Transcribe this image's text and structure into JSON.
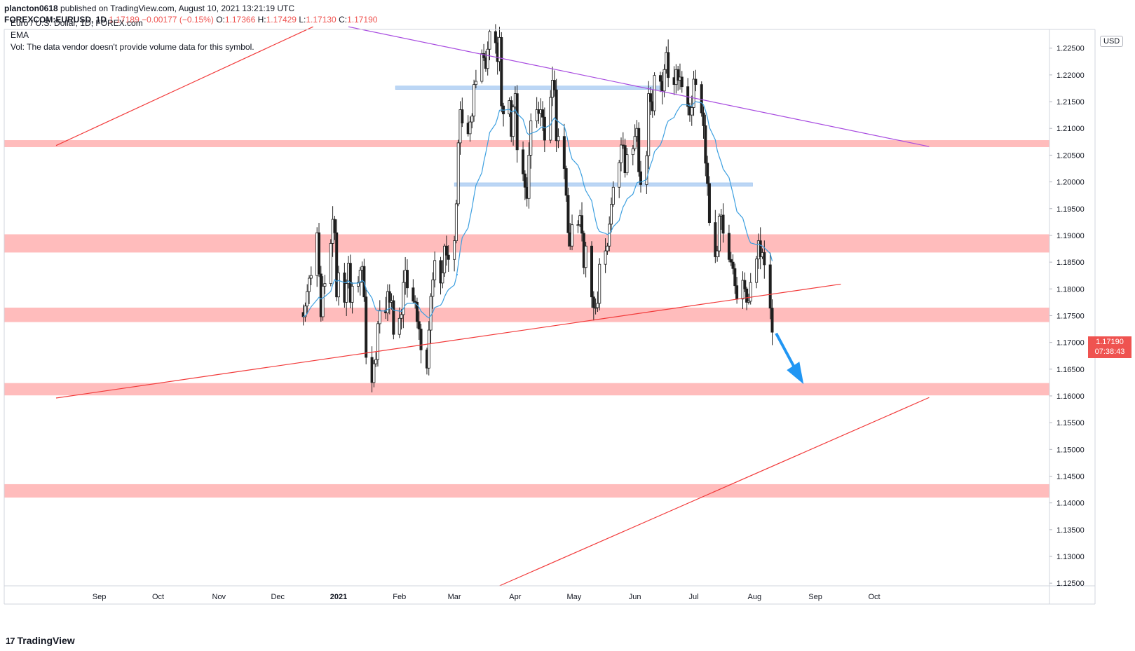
{
  "header": {
    "user": "plancton0618",
    "published": "published on TradingView.com, August 10, 2021 13:21:19 UTC",
    "symbol": "FOREXCOM:EURUSD, 1D",
    "last": "1.17189",
    "change": "−0.00177 (−0.15%)",
    "o_label": "O:",
    "o_value": "1.17366",
    "h_label": "H:",
    "h_value": "1.17429",
    "l_label": "L:",
    "l_value": "1.17130",
    "c_label": "C:",
    "c_value": "1.17190"
  },
  "legend": {
    "name": "Euro / U.S. Dollar, 1D, FOREX.com",
    "ema": "EMA",
    "vol": "Vol: The data vendor doesn't provide volume data for this symbol."
  },
  "axis_badge": "USD",
  "price_tag": {
    "price": "1.17190",
    "countdown": "07:38:43"
  },
  "footer": {
    "brand": "TradingView",
    "logo_glyph": "17"
  },
  "colors": {
    "up": "#26a69a",
    "down": "#ef5350",
    "candle": "#1e1e1e",
    "zone_red": "#ffbcbc",
    "zone_blue": "#bbd6f5",
    "ema": "#3ea0e0",
    "trend_red": "#f23a3a",
    "trend_purple": "#a84ce0",
    "arrow": "#2196f3"
  },
  "chart_data": {
    "type": "candlestick",
    "title": "Euro / U.S. Dollar, 1D, FOREX.com",
    "ylim": [
      1.1245,
      1.2285
    ],
    "y_ticks": [
      "1.22500",
      "1.22000",
      "1.21500",
      "1.21000",
      "1.20500",
      "1.20000",
      "1.19500",
      "1.19000",
      "1.18500",
      "1.18000",
      "1.17500",
      "1.17000",
      "1.16500",
      "1.16000",
      "1.15500",
      "1.15000",
      "1.14500",
      "1.14000",
      "1.13500",
      "1.13000",
      "1.12500"
    ],
    "x_ticks": [
      "Sep",
      "Oct",
      "Nov",
      "Dec",
      "2021",
      "Feb",
      "Mar",
      "Apr",
      "May",
      "Jun",
      "Jul",
      "Aug",
      "Sep",
      "Oct"
    ],
    "x_start": "2020-08-10",
    "last_date": "2021-08-10",
    "red_zones": [
      [
        1.2065,
        1.2078
      ],
      [
        1.1868,
        1.1902
      ],
      [
        1.1738,
        1.1765
      ],
      [
        1.1601,
        1.1624
      ],
      [
        1.141,
        1.1435
      ]
    ],
    "blue_zones": [
      {
        "from": "2021-01-30",
        "to": "2021-06-16",
        "price": 1.2176
      },
      {
        "from": "2021-03-01",
        "to": "2021-07-31",
        "price": 1.1995
      }
    ],
    "trendlines": [
      {
        "color": "red",
        "from": [
          "2020-08-10",
          1.2068
        ],
        "to": [
          "2020-12-19",
          1.229
        ]
      },
      {
        "color": "purple",
        "from": [
          "2021-01-06",
          1.229
        ],
        "to": [
          "2021-10-29",
          1.2066
        ]
      },
      {
        "color": "red",
        "from": [
          "2020-08-10",
          1.1596
        ],
        "to": [
          "2021-09-14",
          1.1809
        ]
      },
      {
        "color": "red",
        "from": [
          "2021-03-24",
          1.1245
        ],
        "to": [
          "2021-10-29",
          1.1597
        ]
      }
    ],
    "forecast_arrow": {
      "from": [
        "2021-08-12",
        1.1717
      ],
      "to": [
        "2021-08-26",
        1.1622
      ]
    },
    "series": [
      {
        "name": "close",
        "values": [
          1.1748,
          1.1768,
          1.1795,
          1.182,
          1.1825,
          1.1905,
          1.1828,
          1.1748,
          1.1805,
          1.181,
          1.1885,
          1.193,
          1.1905,
          1.1785,
          1.183,
          1.1775,
          1.181,
          1.1848,
          1.1775,
          1.1805,
          1.1812,
          1.1835,
          1.1842,
          1.1785,
          1.1672,
          1.1625,
          1.166,
          1.1668,
          1.1735,
          1.176,
          1.1755,
          1.1795,
          1.1775,
          1.1778,
          1.1715,
          1.1745,
          1.1752,
          1.1812,
          1.1835,
          1.1802,
          1.1777,
          1.1775,
          1.1739,
          1.1725,
          1.1686,
          1.1652,
          1.1723,
          1.1786,
          1.1817,
          1.1853,
          1.1811,
          1.183,
          1.188,
          1.1863,
          1.1855,
          1.189,
          1.1959,
          1.2073,
          1.2135,
          1.211,
          1.209,
          1.2112,
          1.2123,
          1.2182,
          1.2188,
          1.224,
          1.2232,
          1.2212,
          1.2248,
          1.2281,
          1.226,
          1.2225,
          1.227,
          1.2142,
          1.2127,
          1.2152,
          1.2085,
          1.214,
          1.2165,
          1.206,
          1.2015,
          1.199,
          1.1969,
          1.205,
          1.2114,
          1.2135,
          1.2128,
          1.2135,
          1.2121,
          1.2078,
          1.2158,
          1.219,
          1.2172,
          1.2077,
          1.2085,
          1.2025,
          1.1975,
          1.1905,
          1.188,
          1.192,
          1.192,
          1.1937,
          1.1904,
          1.184,
          1.188,
          1.1785,
          1.1765,
          1.1765,
          1.1773,
          1.1846,
          1.1871,
          1.188,
          1.1921,
          1.1958,
          1.199,
          1.2036,
          1.2069,
          1.2068,
          1.2017,
          1.2051,
          1.2062,
          1.2085,
          1.21,
          1.2019,
          1.1995,
          1.2049,
          1.2165,
          1.215,
          1.2133,
          1.2199,
          1.2188,
          1.217,
          1.221,
          1.2242,
          1.2195,
          1.2182,
          1.221,
          1.219,
          1.2196,
          1.2178,
          1.2141,
          1.2125,
          1.2139,
          1.2192,
          1.2182,
          1.2129,
          1.2105,
          1.2035,
          1.1997,
          1.1924,
          1.186,
          1.1871,
          1.1936,
          1.1938,
          1.1904,
          1.1855,
          1.185,
          1.1838,
          1.1806,
          1.1781,
          1.1816,
          1.18,
          1.1775,
          1.1777,
          1.1812,
          1.1856,
          1.189,
          1.186,
          1.1868,
          1.1845,
          1.1764,
          1.1719
        ],
        "note": "approximate daily closes read from the chart"
      }
    ],
    "ema_note": "20-period exponential moving average (light blue line)"
  }
}
